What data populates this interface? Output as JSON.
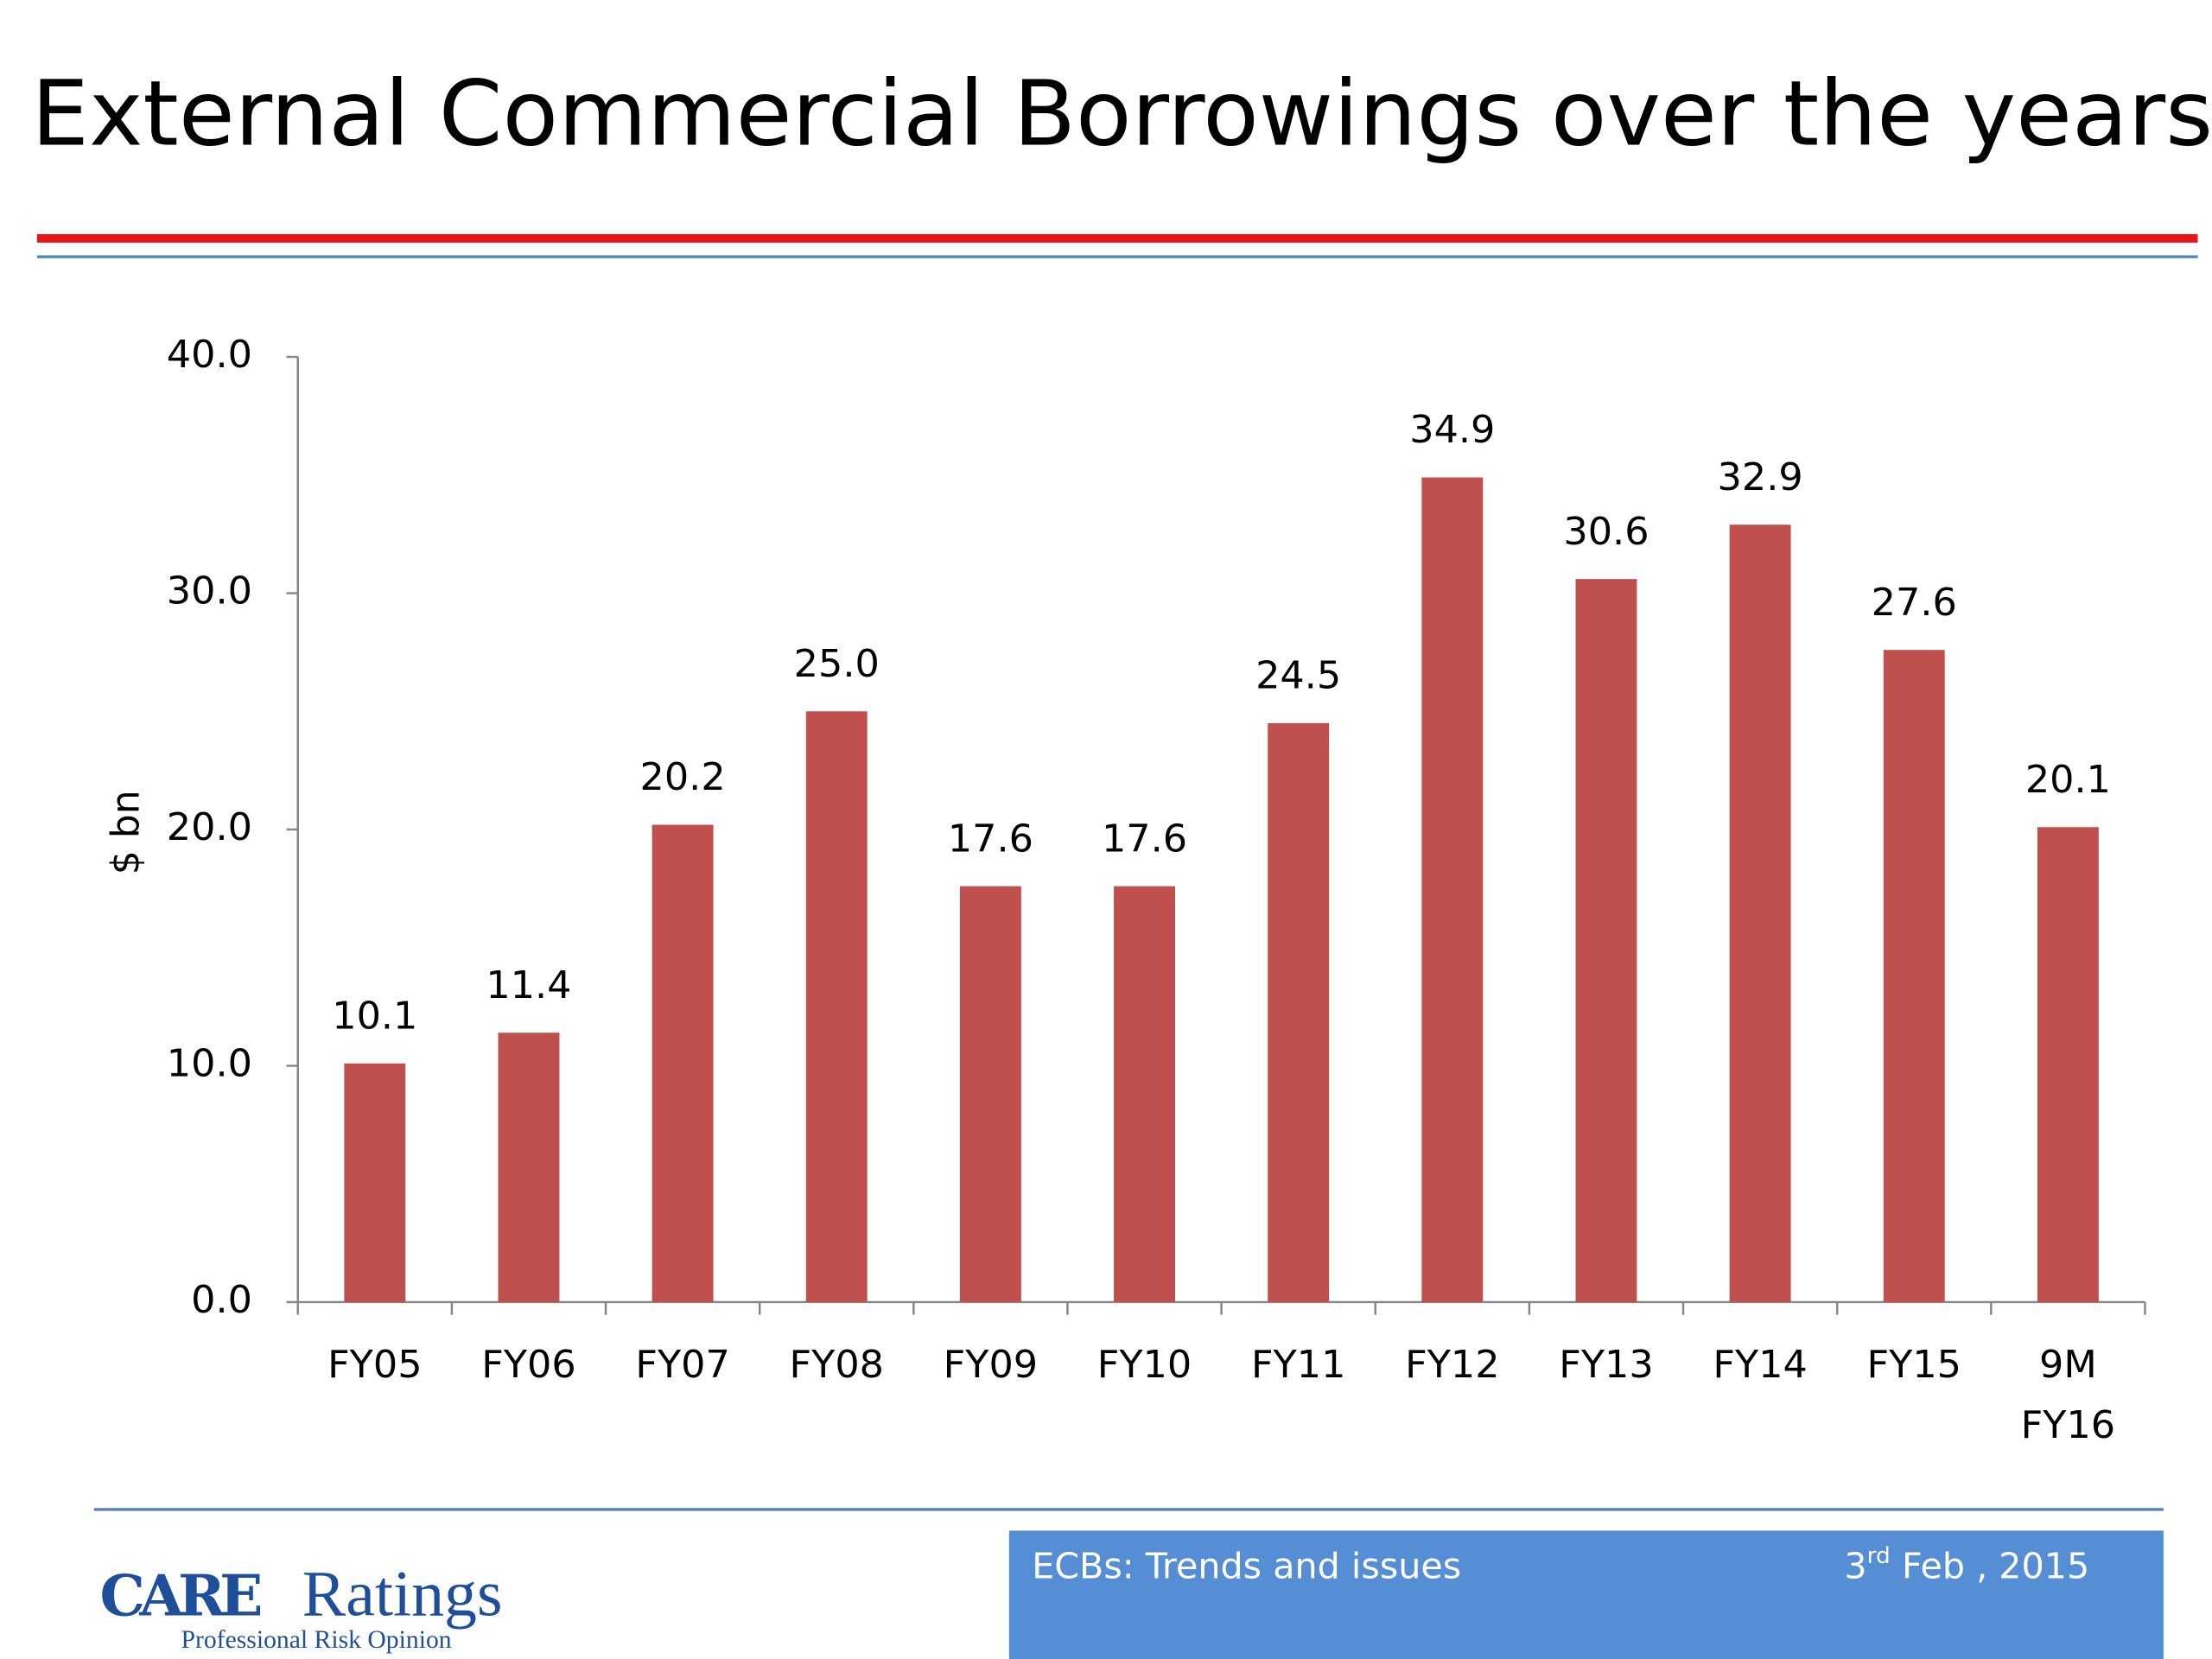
{
  "chart_data": {
    "type": "bar",
    "title": "External Commercial Borrowings over the years",
    "ylabel": "$ bn",
    "categories": [
      "FY05",
      "FY06",
      "FY07",
      "FY08",
      "FY09",
      "FY10",
      "FY11",
      "FY12",
      "FY13",
      "FY14",
      "FY15",
      "9M FY16"
    ],
    "values": [
      10.1,
      11.4,
      20.2,
      25.0,
      17.6,
      17.6,
      24.5,
      34.9,
      30.6,
      32.9,
      27.6,
      20.1
    ],
    "value_labels": [
      "10.1",
      "11.4",
      "20.2",
      "25.0",
      "17.6",
      "17.6",
      "24.5",
      "34.9",
      "30.6",
      "32.9",
      "27.6",
      "20.1"
    ],
    "color": "#c0504d",
    "ylim": [
      0,
      40
    ],
    "yticks": [
      {
        "value": 0,
        "label": "0.0"
      },
      {
        "value": 10,
        "label": "10.0"
      },
      {
        "value": 20,
        "label": "20.0"
      },
      {
        "value": 30,
        "label": "30.0"
      },
      {
        "value": 40,
        "label": "40.0"
      }
    ],
    "grid": false
  },
  "logo": {
    "mark": "CARE",
    "name": "Ratings",
    "tagline": "Professional Risk Opinion"
  },
  "footer": {
    "title": "ECBs: Trends and issues",
    "date_day": "3",
    "date_suffix": "rd",
    "date_rest": "Feb , 2015"
  }
}
